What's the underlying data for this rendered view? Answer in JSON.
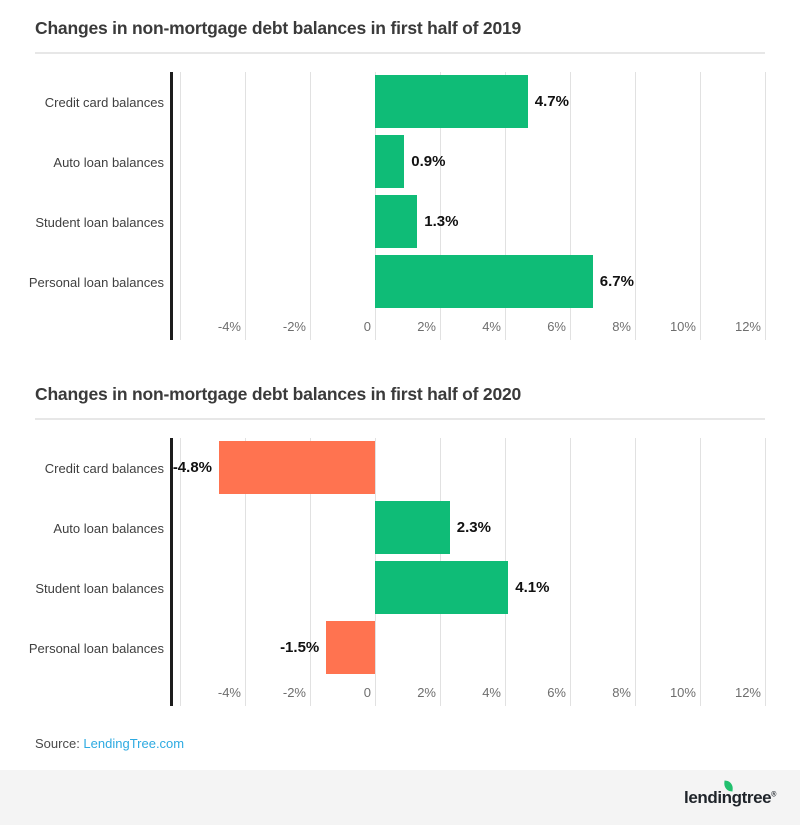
{
  "chart_data": [
    {
      "type": "bar",
      "orientation": "horizontal",
      "title": "Changes in non-mortgage debt balances in first half of 2019",
      "categories": [
        "Credit card balances",
        "Auto loan balances",
        "Student loan balances",
        "Personal loan balances"
      ],
      "values": [
        4.7,
        0.9,
        1.3,
        6.7
      ],
      "value_labels": [
        "4.7%",
        "0.9%",
        "1.3%",
        "6.7%"
      ],
      "xlim": [
        -6,
        12
      ],
      "x_tick_values": [
        -4,
        -2,
        0,
        2,
        4,
        6,
        8,
        10,
        12
      ],
      "x_tick_labels": [
        "-4%",
        "-2%",
        "0",
        "2%",
        "4%",
        "6%",
        "8%",
        "10%",
        "12%"
      ],
      "grid": true,
      "legend": "none",
      "positive_color": "#0fbc77",
      "negative_color": "#ff7350"
    },
    {
      "type": "bar",
      "orientation": "horizontal",
      "title": "Changes in non-mortgage debt balances in first half of 2020",
      "categories": [
        "Credit card balances",
        "Auto loan balances",
        "Student loan balances",
        "Personal loan balances"
      ],
      "values": [
        -4.8,
        2.3,
        4.1,
        -1.5
      ],
      "value_labels": [
        "-4.8%",
        "2.3%",
        "4.1%",
        "-1.5%"
      ],
      "xlim": [
        -6,
        12
      ],
      "x_tick_values": [
        -4,
        -2,
        0,
        2,
        4,
        6,
        8,
        10,
        12
      ],
      "x_tick_labels": [
        "-4%",
        "-2%",
        "0",
        "2%",
        "4%",
        "6%",
        "8%",
        "10%",
        "12%"
      ],
      "grid": true,
      "legend": "none",
      "positive_color": "#0fbc77",
      "negative_color": "#ff7350"
    }
  ],
  "colors": {
    "positive_bar": "#0fbc77",
    "negative_bar": "#ff7350",
    "gridline": "#e1e1e1",
    "axis_line": "#1d1d1d",
    "link_blue": "#2daae1",
    "title_text": "#3a3a3a"
  },
  "source": {
    "prefix": "Source: ",
    "link_text": "LendingTree.com"
  },
  "footer": {
    "logo_text": "lendingtree",
    "registered_mark": "®"
  }
}
